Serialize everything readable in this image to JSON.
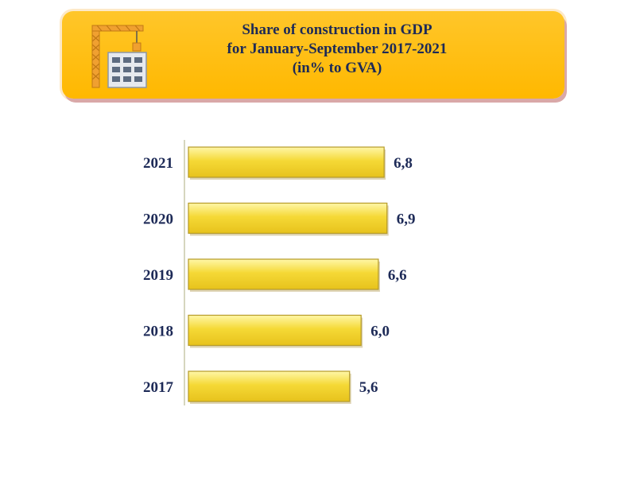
{
  "header": {
    "title_lines": [
      "Share of construction in GDP",
      "for January-September 2017-2021",
      "(in% to GVA)"
    ],
    "icon": "construction-crane-building-icon"
  },
  "colors": {
    "banner": "#ffbf14",
    "bar_fill": "#f5d936",
    "bar_edge": "#b59a28",
    "text": "#1d2a57"
  },
  "chart_data": {
    "type": "bar",
    "orientation": "horizontal",
    "title": "Share of construction in GDP for January-September 2017-2021 (in% to GVA)",
    "categories": [
      "2021",
      "2020",
      "2019",
      "2018",
      "2017"
    ],
    "values": [
      6.8,
      6.9,
      6.6,
      6.0,
      5.6
    ],
    "value_labels": [
      "6,8",
      "6,9",
      "6,6",
      "6,0",
      "5,6"
    ],
    "xlabel": "",
    "ylabel": "",
    "grid": false,
    "legend": "none"
  }
}
